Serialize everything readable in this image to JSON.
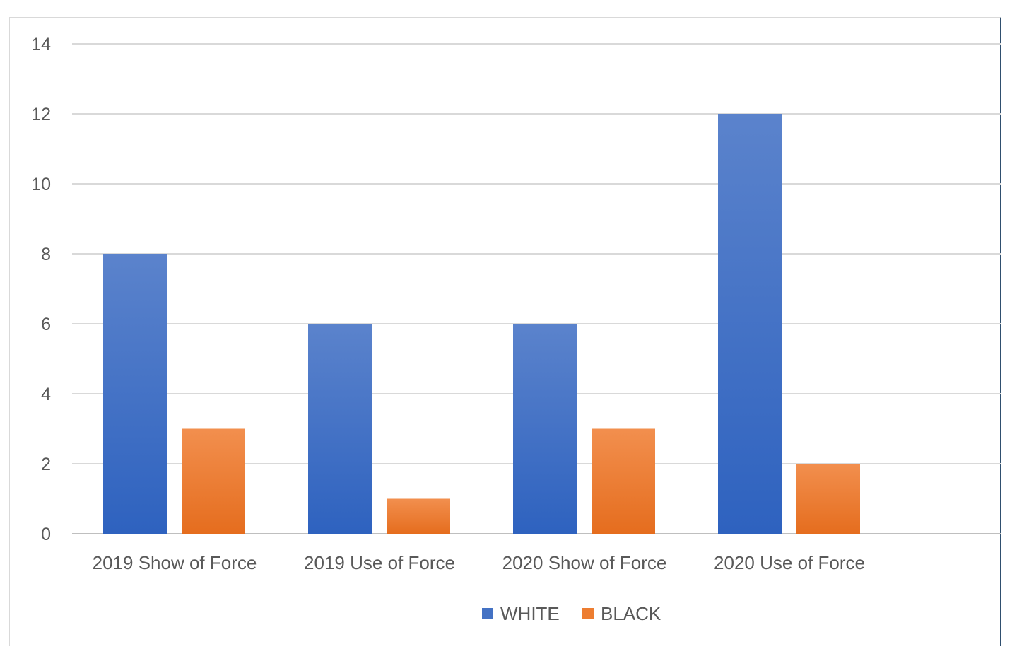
{
  "chart_data": {
    "type": "bar",
    "title": "",
    "xlabel": "",
    "ylabel": "",
    "categories": [
      "2019 Show of Force",
      "2019 Use of Force",
      "2020 Show of Force",
      "2020 Use of Force"
    ],
    "series": [
      {
        "name": "WHITE",
        "values": [
          8,
          6,
          6,
          12
        ],
        "color": "#4472c4"
      },
      {
        "name": "BLACK",
        "values": [
          3,
          1,
          3,
          2
        ],
        "color": "#ed7d31"
      }
    ],
    "ylim": [
      0,
      14
    ],
    "yticks": [
      0,
      2,
      4,
      6,
      8,
      10,
      12,
      14
    ],
    "grid": true,
    "legend_position": "bottom"
  }
}
